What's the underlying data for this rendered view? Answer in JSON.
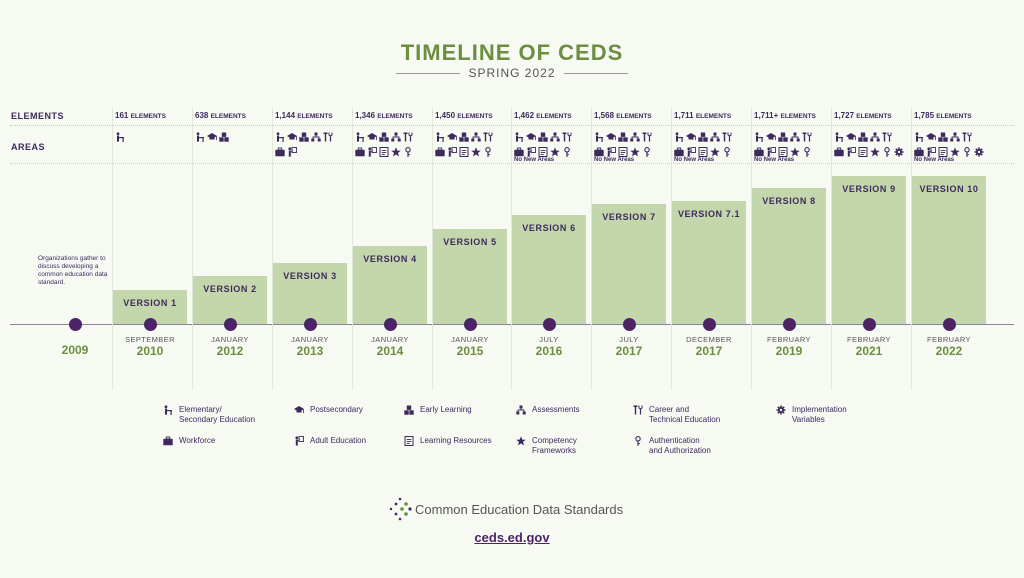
{
  "header": {
    "title": "TIMELINE OF CEDS",
    "subtitle": "SPRING 2022"
  },
  "row_labels": {
    "elements": "ELEMENTS",
    "areas": "AREAS"
  },
  "note_2009": "Organizations gather to discuss developing a common education data standard.",
  "no_new_areas_label": "No New Areas",
  "colors": {
    "bar": "#c4d7ac",
    "dot": "#4a2466",
    "year": "#6b8e3f",
    "text": "#3d2a5c"
  },
  "chart_data": {
    "type": "bar",
    "title": "TIMELINE OF CEDS",
    "subtitle": "SPRING 2022",
    "categories": [
      "2009",
      "2010",
      "2012",
      "2013",
      "2014",
      "2015",
      "2016",
      "2017",
      "2017",
      "2019",
      "2021",
      "2022"
    ],
    "months": [
      "",
      "SEPTEMBER",
      "JANUARY",
      "JANUARY",
      "JANUARY",
      "JANUARY",
      "JULY",
      "JULY",
      "DECEMBER",
      "FEBRUARY",
      "FEBRUARY",
      "FEBRUARY"
    ],
    "versions": [
      "",
      "VERSION 1",
      "VERSION 2",
      "VERSION 3",
      "VERSION 4",
      "VERSION 5",
      "VERSION 6",
      "VERSION 7",
      "VERSION 7.1",
      "VERSION 8",
      "VERSION 9",
      "VERSION 10"
    ],
    "element_labels": [
      "",
      "161",
      "638",
      "1,144",
      "1,346",
      "1,450",
      "1,462",
      "1,568",
      "1,711",
      "1,711+",
      "1,727",
      "1,785"
    ],
    "element_suffix": "ELEMENTS",
    "values": [
      0,
      161,
      638,
      1144,
      1346,
      1450,
      1462,
      1568,
      1711,
      1711,
      1727,
      1785
    ],
    "areas": [
      [],
      [
        "k12"
      ],
      [
        "k12",
        "ps",
        "el"
      ],
      [
        "k12",
        "ps",
        "el",
        "as",
        "cte",
        "wf",
        "ae"
      ],
      [
        "k12",
        "ps",
        "el",
        "as",
        "cte",
        "wf",
        "ae",
        "lr",
        "cf",
        "auth"
      ],
      [
        "k12",
        "ps",
        "el",
        "as",
        "cte",
        "wf",
        "ae",
        "lr",
        "cf",
        "auth"
      ],
      [
        "k12",
        "ps",
        "el",
        "as",
        "cte",
        "wf",
        "ae",
        "lr",
        "cf",
        "auth"
      ],
      [
        "k12",
        "ps",
        "el",
        "as",
        "cte",
        "wf",
        "ae",
        "lr",
        "cf",
        "auth"
      ],
      [
        "k12",
        "ps",
        "el",
        "as",
        "cte",
        "wf",
        "ae",
        "lr",
        "cf",
        "auth"
      ],
      [
        "k12",
        "ps",
        "el",
        "as",
        "cte",
        "wf",
        "ae",
        "lr",
        "cf",
        "auth"
      ],
      [
        "k12",
        "ps",
        "el",
        "as",
        "cte",
        "wf",
        "ae",
        "lr",
        "cf",
        "auth",
        "iv"
      ],
      [
        "k12",
        "ps",
        "el",
        "as",
        "cte",
        "wf",
        "ae",
        "lr",
        "cf",
        "auth",
        "iv"
      ]
    ],
    "no_new_areas": [
      false,
      false,
      false,
      false,
      false,
      false,
      true,
      true,
      true,
      true,
      false,
      true
    ]
  },
  "legend": [
    {
      "icon": "k12",
      "label": "Elementary/\nSecondary Education"
    },
    {
      "icon": "ps",
      "label": "Postsecondary"
    },
    {
      "icon": "el",
      "label": "Early Learning"
    },
    {
      "icon": "as",
      "label": "Assessments"
    },
    {
      "icon": "cte",
      "label": "Career and\nTechnical Education"
    },
    {
      "icon": "iv",
      "label": "Implementation\nVariables"
    },
    {
      "icon": "wf",
      "label": "Workforce"
    },
    {
      "icon": "ae",
      "label": "Adult Education"
    },
    {
      "icon": "lr",
      "label": "Learning Resources"
    },
    {
      "icon": "cf",
      "label": "Competency\nFrameworks"
    },
    {
      "icon": "auth",
      "label": "Authentication\nand Authorization"
    }
  ],
  "footer": {
    "logo_text": "Common Education Data Standards",
    "url": "ceds.ed.gov"
  }
}
